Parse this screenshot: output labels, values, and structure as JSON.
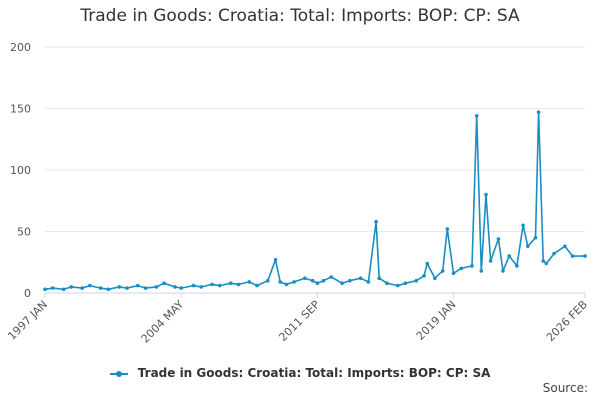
{
  "title": "Trade in Goods: Croatia: Total: Imports: BOP: CP: SA",
  "source_label": "Source:",
  "colors": {
    "series": "#1a8dc5",
    "grid": "#e6e6e6",
    "axis": "#ccd6eb"
  },
  "chart_data": {
    "type": "line",
    "title": "Trade in Goods: Croatia: Total: Imports: BOP: CP: SA",
    "xlabel": "",
    "ylabel": "",
    "ylim": [
      0,
      200
    ],
    "yticks": [
      0,
      50,
      100,
      150,
      200
    ],
    "xticks": [
      "1997 JAN",
      "2004 MAY",
      "2011 SEP",
      "2019 JAN",
      "2026 FEB"
    ],
    "x_range": [
      "1997-01",
      "2026-02"
    ],
    "grid": true,
    "legend": "bottom",
    "series": [
      {
        "name": "Trade in Goods: Croatia: Total: Imports: BOP: CP: SA",
        "points": [
          [
            "1997-01",
            3
          ],
          [
            "1997-06",
            4
          ],
          [
            "1998-01",
            3
          ],
          [
            "1998-06",
            5
          ],
          [
            "1999-01",
            4
          ],
          [
            "1999-06",
            6
          ],
          [
            "2000-01",
            4
          ],
          [
            "2000-06",
            3
          ],
          [
            "2001-01",
            5
          ],
          [
            "2001-06",
            4
          ],
          [
            "2002-01",
            6
          ],
          [
            "2002-06",
            4
          ],
          [
            "2003-01",
            5
          ],
          [
            "2003-06",
            8
          ],
          [
            "2004-01",
            5
          ],
          [
            "2004-05",
            4
          ],
          [
            "2005-01",
            6
          ],
          [
            "2005-06",
            5
          ],
          [
            "2006-01",
            7
          ],
          [
            "2006-06",
            6
          ],
          [
            "2007-01",
            8
          ],
          [
            "2007-06",
            7
          ],
          [
            "2008-01",
            9
          ],
          [
            "2008-06",
            6
          ],
          [
            "2009-01",
            10
          ],
          [
            "2009-06",
            27
          ],
          [
            "2009-09",
            9
          ],
          [
            "2010-01",
            7
          ],
          [
            "2010-06",
            9
          ],
          [
            "2011-01",
            12
          ],
          [
            "2011-06",
            10
          ],
          [
            "2011-09",
            8
          ],
          [
            "2012-01",
            10
          ],
          [
            "2012-06",
            13
          ],
          [
            "2013-01",
            8
          ],
          [
            "2013-06",
            10
          ],
          [
            "2014-01",
            12
          ],
          [
            "2014-06",
            9
          ],
          [
            "2014-11",
            58
          ],
          [
            "2015-01",
            12
          ],
          [
            "2015-06",
            8
          ],
          [
            "2016-01",
            6
          ],
          [
            "2016-06",
            8
          ],
          [
            "2017-01",
            10
          ],
          [
            "2017-06",
            14
          ],
          [
            "2017-08",
            24
          ],
          [
            "2018-01",
            12
          ],
          [
            "2018-06",
            18
          ],
          [
            "2018-09",
            52
          ],
          [
            "2019-01",
            16
          ],
          [
            "2019-06",
            20
          ],
          [
            "2020-01",
            22
          ],
          [
            "2020-04",
            144
          ],
          [
            "2020-07",
            18
          ],
          [
            "2020-10",
            80
          ],
          [
            "2021-01",
            26
          ],
          [
            "2021-06",
            44
          ],
          [
            "2021-09",
            18
          ],
          [
            "2022-01",
            30
          ],
          [
            "2022-06",
            22
          ],
          [
            "2022-10",
            55
          ],
          [
            "2023-01",
            38
          ],
          [
            "2023-06",
            45
          ],
          [
            "2023-08",
            147
          ],
          [
            "2023-11",
            26
          ],
          [
            "2024-01",
            24
          ],
          [
            "2024-06",
            32
          ],
          [
            "2025-01",
            38
          ],
          [
            "2025-06",
            30
          ],
          [
            "2026-02",
            30
          ]
        ]
      }
    ]
  }
}
